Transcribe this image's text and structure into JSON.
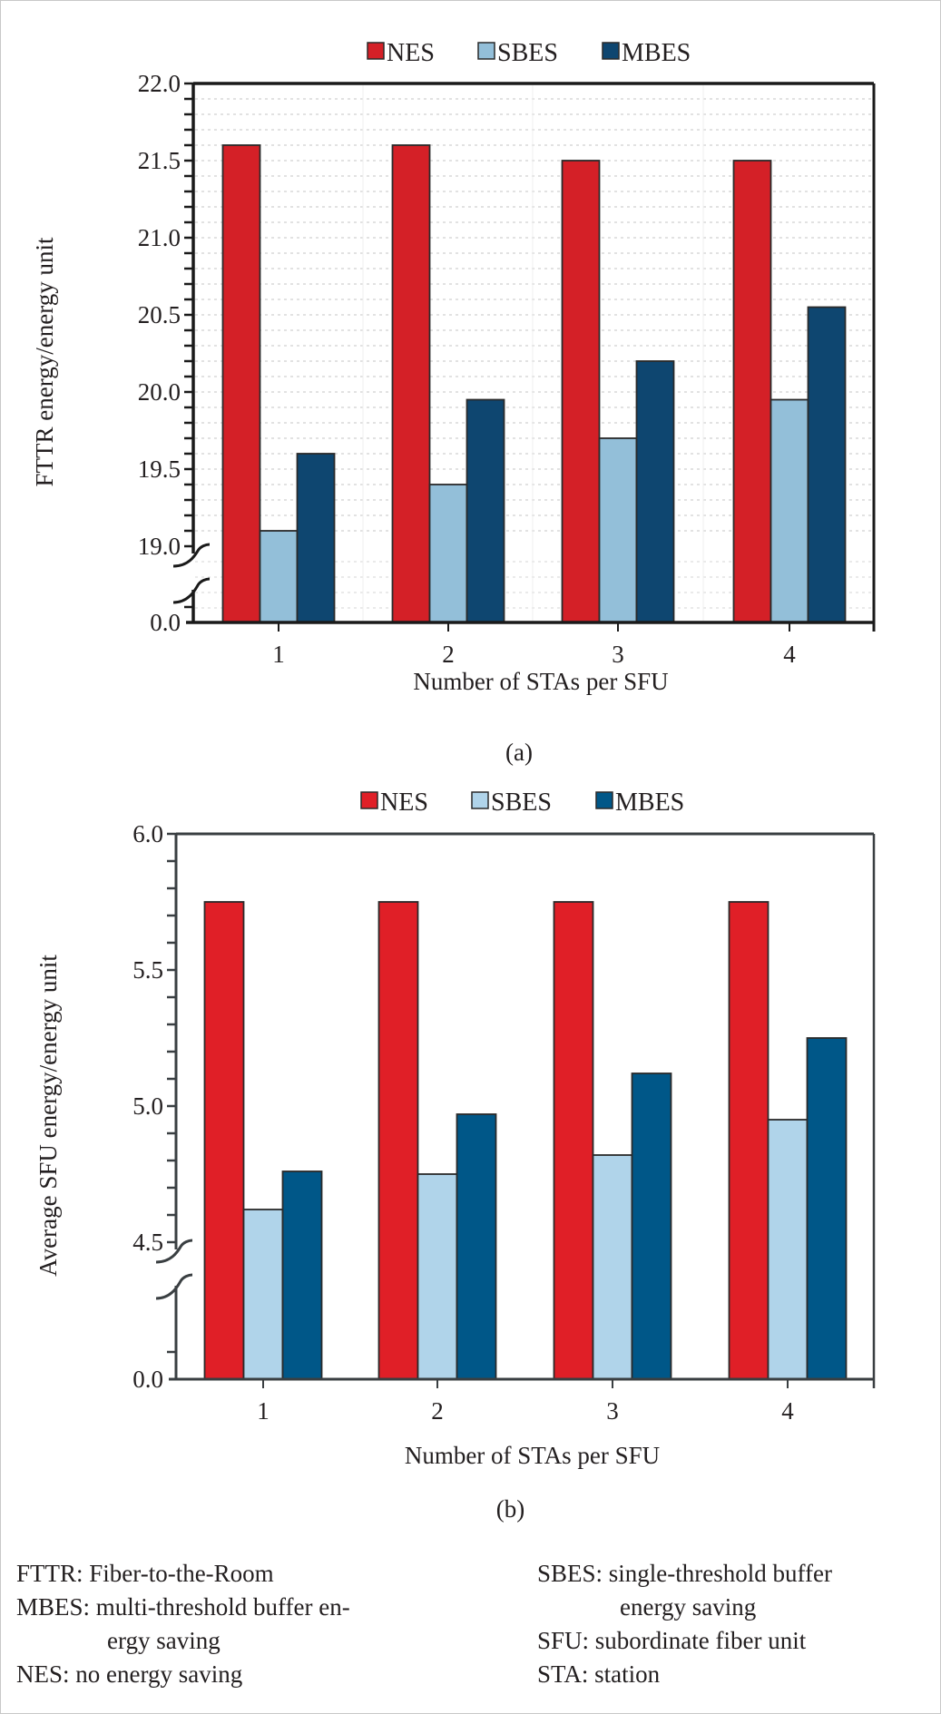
{
  "colors": {
    "NES": "#d42027",
    "SBES_a": "#93bfd9",
    "MBES_a": "#0e4670",
    "SBES_b": "#b0d4ea",
    "MBES_b": "#005788",
    "NES_b": "#e01f27"
  },
  "chart_data": [
    {
      "id": "a",
      "type": "bar",
      "title": "",
      "caption": "(a)",
      "xlabel": "Number of STAs per SFU",
      "ylabel": "FTTR energy/energy unit",
      "categories": [
        "1",
        "2",
        "3",
        "4"
      ],
      "series": [
        {
          "name": "NES",
          "values": [
            21.6,
            21.6,
            21.5,
            21.5
          ]
        },
        {
          "name": "SBES",
          "values": [
            19.1,
            19.4,
            19.7,
            19.95
          ]
        },
        {
          "name": "MBES",
          "values": [
            19.6,
            19.95,
            20.2,
            20.55
          ]
        }
      ],
      "ylim": [
        19.0,
        22.0
      ],
      "axis_break": {
        "below": 19.0,
        "bottom_tick": "0.0"
      },
      "yticks": [
        "0.0",
        "19.0",
        "19.5",
        "20.0",
        "20.5",
        "21.0",
        "21.5",
        "22.0"
      ],
      "minor_tick_step": 0.1,
      "grid": true,
      "legend": {
        "placement": "top-center",
        "entries": [
          "NES",
          "SBES",
          "MBES"
        ]
      }
    },
    {
      "id": "b",
      "type": "bar",
      "title": "",
      "caption": "(b)",
      "xlabel": "Number of STAs per SFU",
      "ylabel": "Average SFU energy/energy unit",
      "categories": [
        "1",
        "2",
        "3",
        "4"
      ],
      "series": [
        {
          "name": "NES",
          "values": [
            5.75,
            5.75,
            5.75,
            5.75
          ]
        },
        {
          "name": "SBES",
          "values": [
            4.62,
            4.75,
            4.82,
            4.95
          ]
        },
        {
          "name": "MBES",
          "values": [
            4.76,
            4.97,
            5.12,
            5.25
          ]
        }
      ],
      "ylim": [
        4.5,
        6.0
      ],
      "axis_break": {
        "below": 4.5,
        "bottom_tick": "0.0"
      },
      "yticks": [
        "0.0",
        "4.5",
        "5.0",
        "5.5",
        "6.0"
      ],
      "minor_tick_step": 0.1,
      "grid": false,
      "legend": {
        "placement": "top-center",
        "entries": [
          "NES",
          "SBES",
          "MBES"
        ]
      }
    }
  ],
  "glossary": {
    "left": [
      {
        "term": "FTTR:",
        "def": "Fiber-to-the-Room"
      },
      {
        "term": "MBES:",
        "def": "multi-threshold buffer en-",
        "cont": "ergy saving"
      },
      {
        "term": "NES:",
        "def": "no energy saving"
      }
    ],
    "right": [
      {
        "term": "SBES:",
        "def": "single-threshold buffer",
        "cont": "energy saving"
      },
      {
        "term": "SFU:",
        "def": "subordinate fiber unit"
      },
      {
        "term": "STA:",
        "def": "station"
      }
    ]
  }
}
